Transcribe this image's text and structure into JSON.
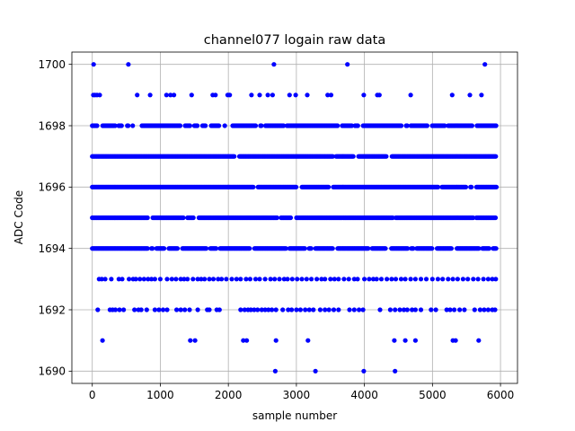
{
  "chart_data": {
    "type": "scatter",
    "title": "channel077 logain raw data",
    "xlabel": "sample number",
    "ylabel": "ADC Code",
    "xlim": [
      -300,
      6250
    ],
    "ylim": [
      1689.6,
      1700.4
    ],
    "xticks": [
      0,
      1000,
      2000,
      3000,
      4000,
      5000,
      6000
    ],
    "yticks": [
      1690,
      1692,
      1694,
      1696,
      1698,
      1700
    ],
    "grid": true,
    "marker_color": "#0000ff",
    "series": [
      {
        "name": "",
        "x_start": 0,
        "x_end": 5940,
        "dense_levels": [
          1694,
          1695,
          1696,
          1697,
          1698
        ],
        "sparse_points": {
          "1700": [
            20,
            530,
            2670,
            3750,
            5770
          ],
          "1699": [
            15,
            40,
            70,
            110,
            660,
            850,
            1090,
            1150,
            1200,
            1460,
            1770,
            1810,
            1990,
            2020,
            2340,
            2460,
            2580,
            2650,
            2900,
            2990,
            3160,
            3460,
            3510,
            3990,
            4190,
            4220,
            4680,
            5290,
            5550,
            5720
          ],
          "1693": [
            100,
            140,
            190,
            280,
            390,
            440,
            540,
            600,
            640,
            700,
            760,
            820,
            870,
            920,
            1000,
            1100,
            1170,
            1230,
            1300,
            1350,
            1400,
            1480,
            1550,
            1600,
            1650,
            1720,
            1780,
            1850,
            1900,
            1970,
            2050,
            2120,
            2180,
            2260,
            2320,
            2400,
            2460,
            2540,
            2620,
            2680,
            2750,
            2820,
            2870,
            2940,
            3010,
            3080,
            3150,
            3220,
            3300,
            3370,
            3420,
            3500,
            3560,
            3620,
            3700,
            3770,
            3850,
            3900,
            4000,
            4070,
            4130,
            4180,
            4250,
            4330,
            4400,
            4460,
            4540,
            4600,
            4680,
            4750,
            4830,
            4910,
            5000,
            5080,
            5150,
            5230,
            5300,
            5370,
            5450,
            5520,
            5600,
            5670,
            5750,
            5820,
            5880,
            5930
          ],
          "1692": [
            80,
            260,
            300,
            340,
            400,
            460,
            620,
            680,
            720,
            800,
            920,
            980,
            1040,
            1100,
            1240,
            1300,
            1360,
            1430,
            1550,
            1690,
            1720,
            1830,
            1870,
            2180,
            2240,
            2290,
            2330,
            2380,
            2430,
            2490,
            2540,
            2590,
            2640,
            2700,
            2800,
            2880,
            2930,
            3000,
            3060,
            3130,
            3190,
            3250,
            3350,
            3420,
            3480,
            3550,
            3620,
            3780,
            3850,
            3920,
            3980,
            4230,
            4380,
            4450,
            4520,
            4580,
            4630,
            4700,
            4750,
            4830,
            4980,
            5050,
            5210,
            5260,
            5320,
            5400,
            5470,
            5620,
            5700,
            5760,
            5820,
            5880,
            5920
          ],
          "1691": [
            150,
            1440,
            1510,
            2220,
            2270,
            2700,
            3170,
            4440,
            4600,
            4750,
            5300,
            5340,
            5680
          ],
          "1690": [
            2690,
            3280,
            3990,
            4450
          ]
        }
      }
    ]
  }
}
